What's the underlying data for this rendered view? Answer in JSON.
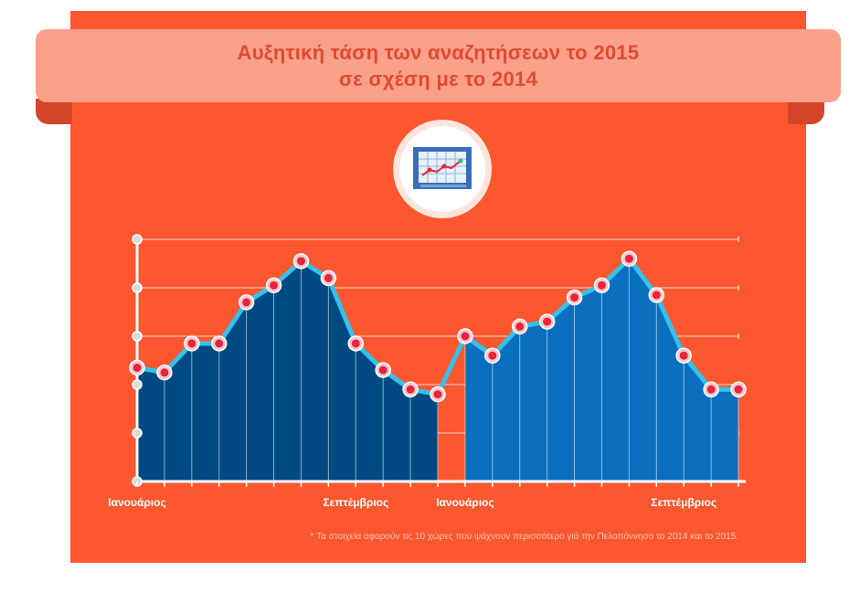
{
  "title": {
    "line1": "Αυξητική τάση των αναζητήσεων το 2015",
    "line2": "σε σχέση με το 2014"
  },
  "footnote": "* Τα στοιχεία αφορούν τις 10 χώρες που ψάχνουν περισσότερο γιά την Πελοπόννησο το 2014 και το 2015.",
  "icon": "chart-screen-icon",
  "colors": {
    "background": "#fd5730",
    "banner": "#fba08b",
    "title": "#e04a2e",
    "series_2014": "#004a82",
    "series_2015": "#0a6fbf",
    "outline": "#36c2e8",
    "marker": "#e8243a"
  },
  "chart_data": {
    "type": "area",
    "x_tick_labels": [
      "Ιανουάριος",
      "Σεπτέμβριος",
      "Ιανουάριος",
      "Σεπτέμβριος"
    ],
    "ylim": [
      0,
      5
    ],
    "grid": true,
    "series": [
      {
        "values": [
          2.35,
          2.25,
          2.85,
          2.85,
          3.7,
          4.05,
          4.55,
          4.2,
          2.85,
          2.3,
          1.9,
          1.8
        ]
      },
      {
        "values": [
          3.0,
          2.6,
          3.2,
          3.3,
          3.8,
          4.05,
          4.6,
          3.85,
          2.6,
          1.9,
          1.9
        ]
      }
    ]
  }
}
